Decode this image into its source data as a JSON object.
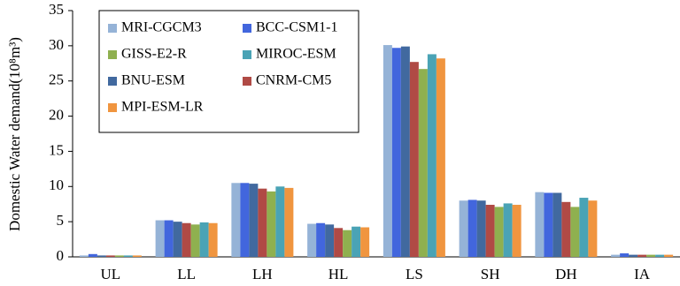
{
  "chart_data": {
    "type": "bar",
    "ylabel": "Domestic Water demand(10⁸m³)",
    "categories": [
      "UL",
      "LL",
      "LH",
      "HL",
      "LS",
      "SH",
      "DH",
      "IA"
    ],
    "series": [
      {
        "name": "MRI-CGCM3",
        "color": "#95b3d7",
        "values": [
          0.2,
          5.2,
          10.5,
          4.7,
          30.1,
          8.0,
          9.2,
          0.3
        ]
      },
      {
        "name": "BCC-CSM1-1",
        "color": "#4266dd",
        "values": [
          0.4,
          5.2,
          10.5,
          4.8,
          29.7,
          8.1,
          9.1,
          0.5
        ]
      },
      {
        "name": "BNU-ESM",
        "color": "#41699f",
        "values": [
          0.2,
          5.0,
          10.4,
          4.6,
          29.9,
          8.0,
          9.1,
          0.3
        ]
      },
      {
        "name": "CNRM-CM5",
        "color": "#b04a45",
        "values": [
          0.2,
          4.8,
          9.7,
          4.1,
          27.7,
          7.4,
          7.8,
          0.3
        ]
      },
      {
        "name": "GISS-E2-R",
        "color": "#8fb04f",
        "values": [
          0.2,
          4.6,
          9.3,
          3.8,
          26.7,
          7.1,
          7.1,
          0.3
        ]
      },
      {
        "name": "MIROC-ESM",
        "color": "#4aa3b5",
        "values": [
          0.2,
          4.9,
          10.0,
          4.3,
          28.8,
          7.6,
          8.4,
          0.3
        ]
      },
      {
        "name": "MPI-ESM-LR",
        "color": "#f0953f",
        "values": [
          0.2,
          4.8,
          9.8,
          4.2,
          28.2,
          7.4,
          8.0,
          0.3
        ]
      }
    ],
    "ylim": [
      0,
      35
    ],
    "yticks": [
      0,
      5,
      10,
      15,
      20,
      25,
      30,
      35
    ],
    "grid": false
  }
}
